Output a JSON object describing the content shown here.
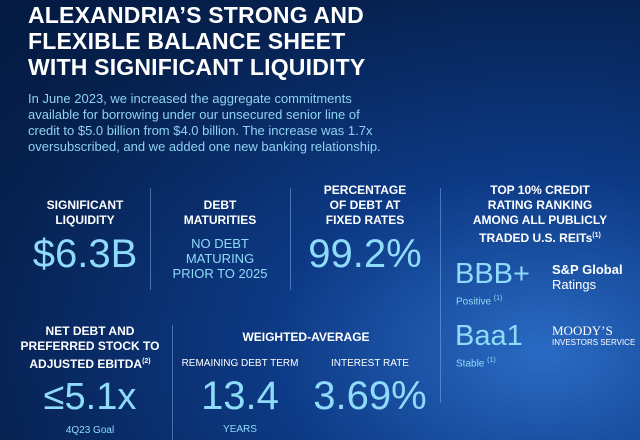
{
  "header": {
    "title_lines": [
      "ALEXANDRIA’S STRONG AND",
      "FLEXIBLE BALANCE SHEET",
      "WITH SIGNIFICANT LIQUIDITY"
    ],
    "intro_lines": [
      "In June 2023, we increased the aggregate commitments",
      "available for borrowing under our unsecured senior line of",
      "credit to $5.0 billion from $4.0 billion. The increase was 1.7x",
      "oversubscribed, and we added one new banking relationship."
    ]
  },
  "stats": {
    "liquidity": {
      "label": [
        "SIGNIFICANT",
        "LIQUIDITY"
      ],
      "value": "$6.3B"
    },
    "maturities": {
      "label": [
        "DEBT",
        "MATURITIES"
      ],
      "value": [
        "NO DEBT",
        "MATURING",
        "PRIOR TO 2025"
      ]
    },
    "fixed_rate": {
      "label": [
        "PERCENTAGE",
        "OF DEBT AT",
        "FIXED RATES"
      ],
      "value": "99.2%"
    },
    "ratings": {
      "label": [
        "TOP 10% CREDIT",
        "RATING RANKING",
        "AMONG ALL PUBLICLY",
        "TRADED U.S. REITs"
      ],
      "label_note": "(1)",
      "sp": {
        "rating": "BBB+",
        "agency": [
          "S&P Global",
          "Ratings"
        ],
        "outlook": "Positive",
        "note": "(1)"
      },
      "moodys": {
        "rating": "Baa1",
        "agency": [
          "MOODY’S",
          "INVESTORS SERVICE"
        ],
        "outlook": "Stable",
        "note": "(1)"
      }
    },
    "leverage": {
      "label": [
        "NET DEBT AND",
        "PREFERRED STOCK TO",
        "ADJUSTED EBITDA"
      ],
      "label_note": "(2)",
      "value": "≤5.1x",
      "caption": "4Q23 Goal"
    },
    "weighted_average": {
      "label": "WEIGHTED-AVERAGE",
      "term": {
        "label": "REMAINING DEBT TERM",
        "value": "13.4",
        "unit": "YEARS"
      },
      "rate": {
        "label": "INTEREST RATE",
        "value": "3.69%"
      }
    }
  }
}
